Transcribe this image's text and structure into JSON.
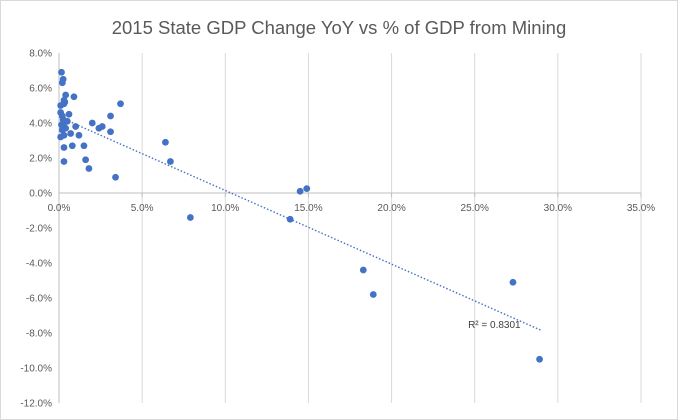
{
  "chart_data": {
    "type": "scatter",
    "title": "2015 State GDP Change YoY vs % of GDP from Mining",
    "xlabel": "",
    "ylabel": "",
    "xlim": [
      0,
      35
    ],
    "ylim": [
      -12,
      8
    ],
    "x_ticks": [
      0,
      5,
      10,
      15,
      20,
      25,
      30,
      35
    ],
    "y_ticks": [
      8,
      6,
      4,
      2,
      0,
      -2,
      -4,
      -6,
      -8,
      -10,
      -12
    ],
    "x_tick_labels": [
      "0.0%",
      "5.0%",
      "10.0%",
      "15.0%",
      "20.0%",
      "25.0%",
      "30.0%",
      "35.0%"
    ],
    "y_tick_labels": [
      "8.0%",
      "6.0%",
      "4.0%",
      "2.0%",
      "0.0%",
      "-2.0%",
      "-4.0%",
      "-6.0%",
      "-8.0%",
      "-10.0%",
      "-12.0%"
    ],
    "grid": "vertical",
    "marker_color": "#4472c4",
    "trendline": {
      "type": "linear",
      "style": "dotted",
      "color": "#4472c4",
      "x_range": [
        0,
        29
      ],
      "y_at_start": 4.35,
      "y_at_end": -7.85,
      "r_squared_label": "R² = 0.8301"
    },
    "points": [
      {
        "x": 0.1,
        "y": 5.0
      },
      {
        "x": 0.15,
        "y": 6.9
      },
      {
        "x": 0.2,
        "y": 6.3
      },
      {
        "x": 0.25,
        "y": 6.5
      },
      {
        "x": 0.3,
        "y": 5.3
      },
      {
        "x": 0.3,
        "y": 5.1
      },
      {
        "x": 0.35,
        "y": 5.2
      },
      {
        "x": 0.4,
        "y": 5.6
      },
      {
        "x": 0.1,
        "y": 4.6
      },
      {
        "x": 0.2,
        "y": 4.4
      },
      {
        "x": 0.25,
        "y": 4.2
      },
      {
        "x": 0.3,
        "y": 4.0
      },
      {
        "x": 0.15,
        "y": 3.9
      },
      {
        "x": 0.2,
        "y": 3.6
      },
      {
        "x": 0.4,
        "y": 3.7
      },
      {
        "x": 0.3,
        "y": 3.3
      },
      {
        "x": 0.1,
        "y": 3.2
      },
      {
        "x": 0.3,
        "y": 2.6
      },
      {
        "x": 0.3,
        "y": 1.8
      },
      {
        "x": 0.5,
        "y": 4.1
      },
      {
        "x": 0.6,
        "y": 4.5
      },
      {
        "x": 0.7,
        "y": 3.4
      },
      {
        "x": 0.8,
        "y": 2.7
      },
      {
        "x": 0.9,
        "y": 5.5
      },
      {
        "x": 1.0,
        "y": 3.8
      },
      {
        "x": 1.2,
        "y": 3.3
      },
      {
        "x": 1.5,
        "y": 2.7
      },
      {
        "x": 1.6,
        "y": 1.9
      },
      {
        "x": 1.8,
        "y": 1.4
      },
      {
        "x": 2.0,
        "y": 4.0
      },
      {
        "x": 2.4,
        "y": 3.7
      },
      {
        "x": 2.6,
        "y": 3.8
      },
      {
        "x": 3.1,
        "y": 4.4
      },
      {
        "x": 3.1,
        "y": 3.5
      },
      {
        "x": 3.4,
        "y": 0.9
      },
      {
        "x": 3.7,
        "y": 5.1
      },
      {
        "x": 6.4,
        "y": 2.9
      },
      {
        "x": 6.7,
        "y": 1.8
      },
      {
        "x": 7.9,
        "y": -1.4
      },
      {
        "x": 13.9,
        "y": -1.5
      },
      {
        "x": 14.5,
        "y": 0.1
      },
      {
        "x": 14.9,
        "y": 0.25
      },
      {
        "x": 18.3,
        "y": -4.4
      },
      {
        "x": 18.9,
        "y": -5.8
      },
      {
        "x": 27.3,
        "y": -5.1
      },
      {
        "x": 28.9,
        "y": -9.5
      }
    ]
  }
}
